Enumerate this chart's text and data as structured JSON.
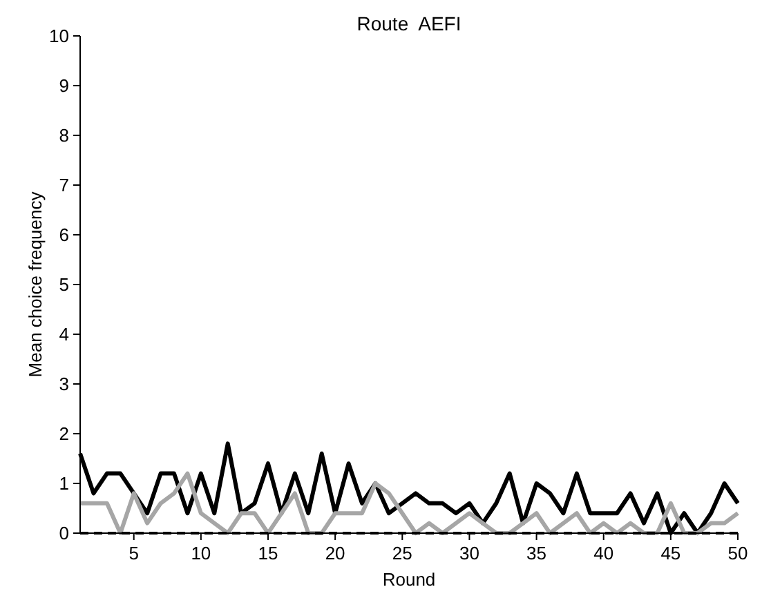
{
  "chart_data": {
    "type": "line",
    "title": "Route  AEFI",
    "xlabel": "Round",
    "ylabel": "Mean choice frequency",
    "x": [
      1,
      2,
      3,
      4,
      5,
      6,
      7,
      8,
      9,
      10,
      11,
      12,
      13,
      14,
      15,
      16,
      17,
      18,
      19,
      20,
      21,
      22,
      23,
      24,
      25,
      26,
      27,
      28,
      29,
      30,
      31,
      32,
      33,
      34,
      35,
      36,
      37,
      38,
      39,
      40,
      41,
      42,
      43,
      44,
      45,
      46,
      47,
      48,
      49,
      50
    ],
    "series": [
      {
        "color": "#000000",
        "values": [
          1.6,
          0.8,
          1.2,
          1.2,
          0.8,
          0.4,
          1.2,
          1.2,
          0.4,
          1.2,
          0.4,
          1.8,
          0.4,
          0.6,
          1.4,
          0.4,
          1.2,
          0.4,
          1.6,
          0.4,
          1.4,
          0.6,
          1.0,
          0.4,
          0.6,
          0.8,
          0.6,
          0.6,
          0.4,
          0.6,
          0.2,
          0.6,
          1.2,
          0.2,
          1.0,
          0.8,
          0.4,
          1.2,
          0.4,
          0.4,
          0.4,
          0.8,
          0.2,
          0.8,
          0,
          0.4,
          0,
          0.4,
          1.0,
          0.6
        ]
      },
      {
        "color": "#a6a6a6",
        "values": [
          0.6,
          0.6,
          0.6,
          0,
          0.8,
          0.2,
          0.6,
          0.8,
          1.2,
          0.4,
          0.2,
          0,
          0.4,
          0.4,
          0,
          0.4,
          0.8,
          0,
          0,
          0.4,
          0.4,
          0.4,
          1.0,
          0.8,
          0.4,
          0,
          0.2,
          0,
          0.2,
          0.4,
          0.2,
          0,
          0,
          0.2,
          0.4,
          0,
          0.2,
          0.4,
          0,
          0.2,
          0,
          0.2,
          0,
          0,
          0.6,
          0,
          0,
          0.2,
          0.2,
          0.4
        ]
      }
    ],
    "ref_lines": [
      {
        "axis": "y",
        "value": 0,
        "color": "#000000",
        "line_style": "dashed"
      }
    ],
    "xlim": [
      1,
      50
    ],
    "xticks": [
      5,
      10,
      15,
      20,
      25,
      30,
      35,
      40,
      45,
      50
    ],
    "ylim": [
      0,
      10
    ],
    "yticks": [
      0,
      1,
      2,
      3,
      4,
      5,
      6,
      7,
      8,
      9,
      10
    ],
    "grid": false,
    "marker": "none",
    "line_style": "solid"
  }
}
